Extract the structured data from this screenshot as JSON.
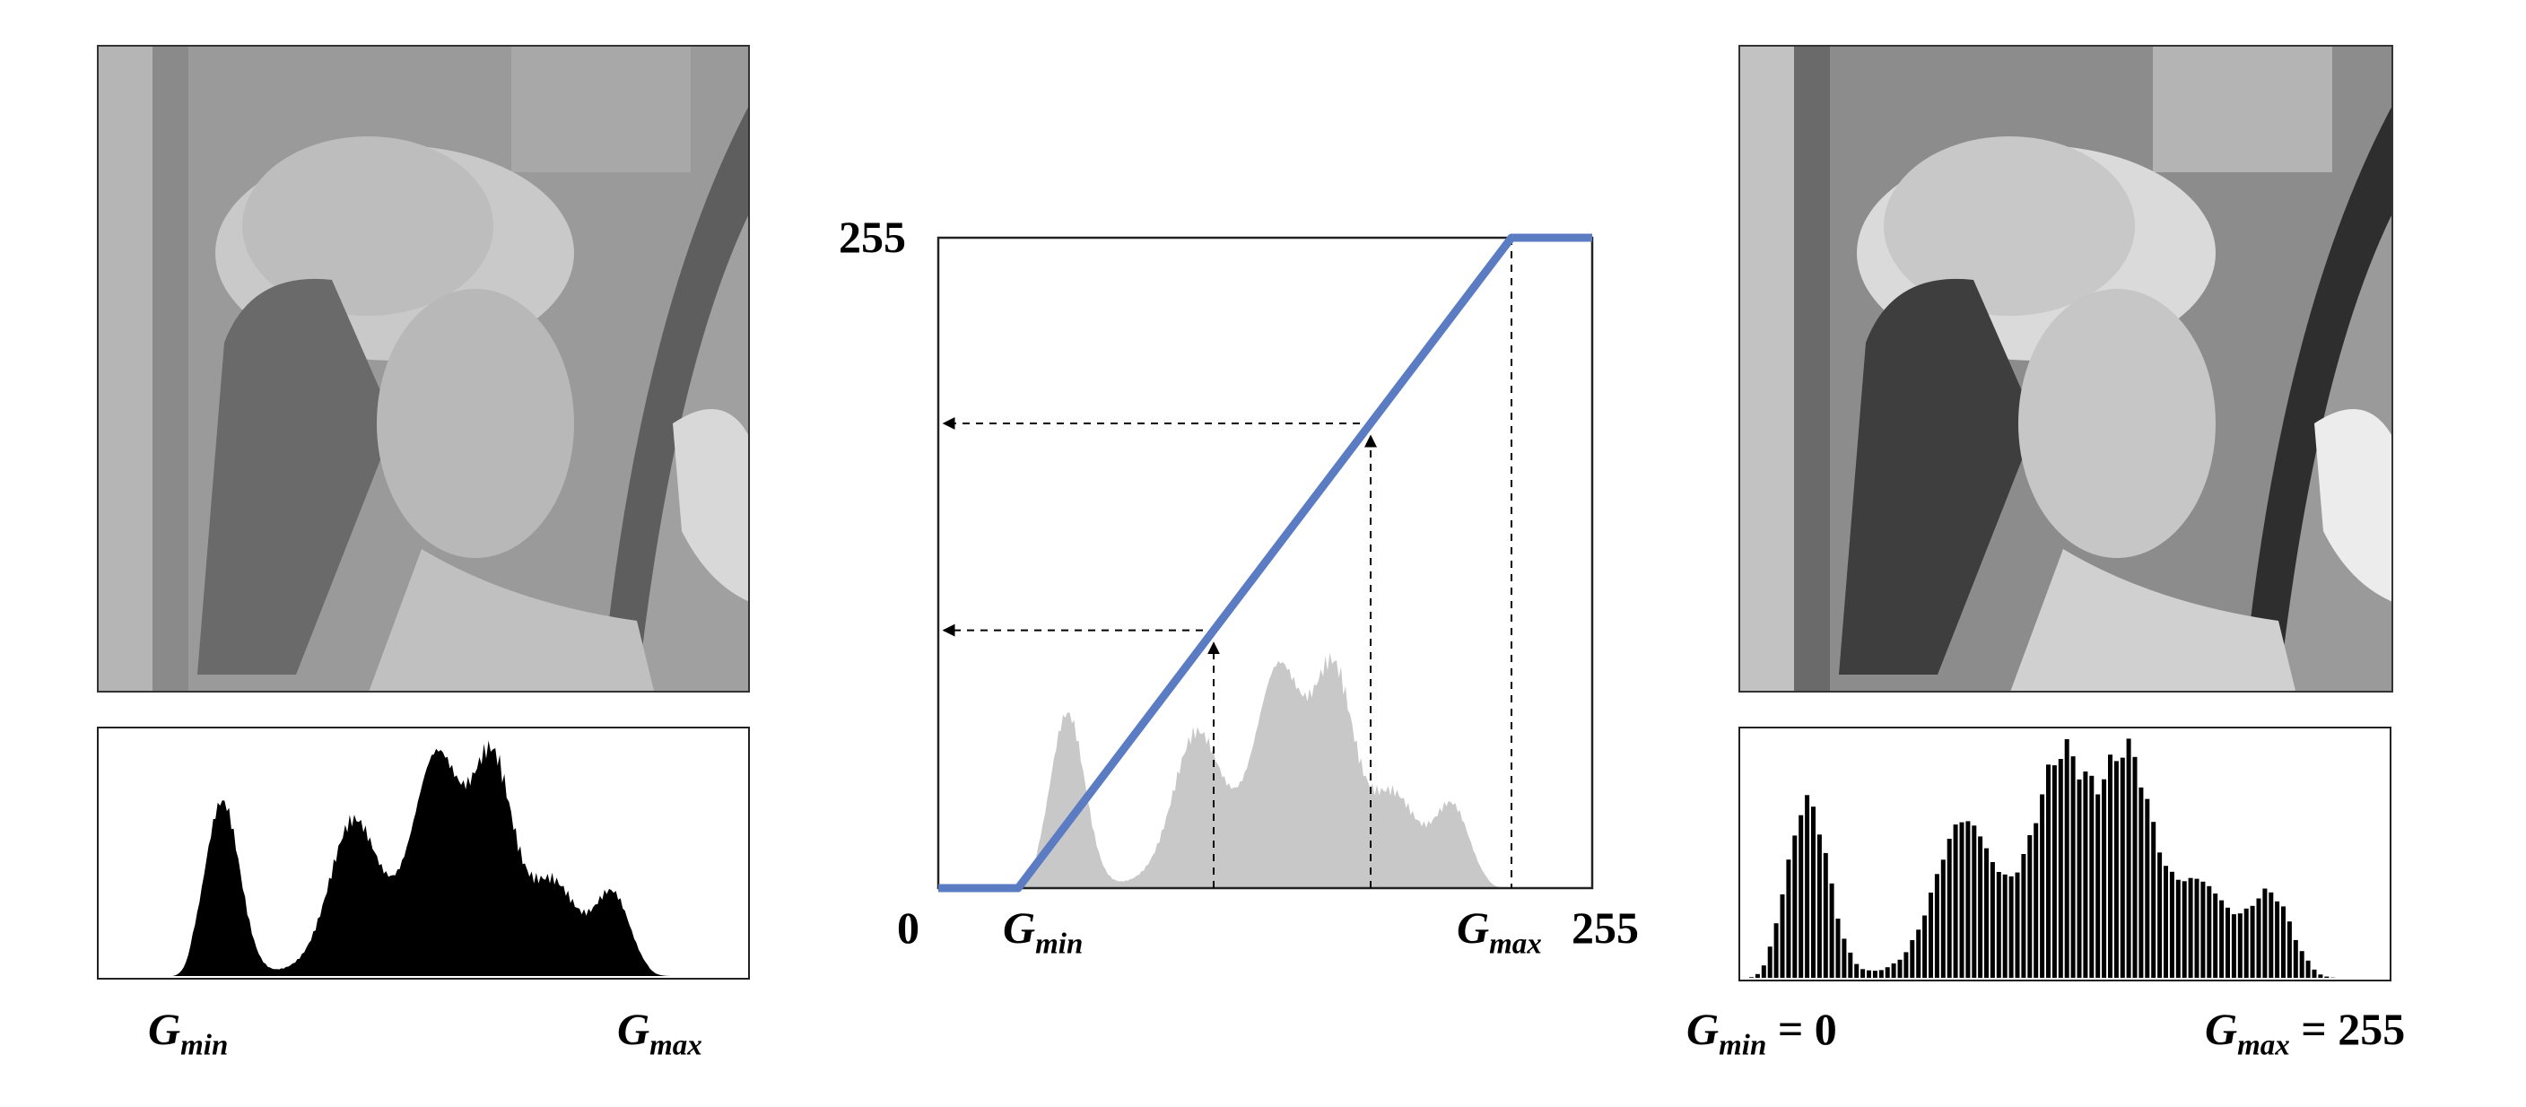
{
  "left": {
    "label_gmin": {
      "g": "G",
      "sub": "min"
    },
    "label_gmax": {
      "g": "G",
      "sub": "max"
    }
  },
  "center": {
    "y_top_label": "255",
    "x_origin_label": "0",
    "x_end_label": "255",
    "label_gmin": {
      "g": "G",
      "sub": "min"
    },
    "label_gmax": {
      "g": "G",
      "sub": "max"
    }
  },
  "right": {
    "label_gmin": {
      "g": "G",
      "sub": "min",
      "rest": " = 0"
    },
    "label_gmax": {
      "g": "G",
      "sub": "max",
      "rest": " = 255"
    }
  },
  "colors": {
    "transfer_line": "#5b7cc2",
    "histogram_fill": "#000000",
    "histogram_gray": "#c8c8c8"
  }
}
